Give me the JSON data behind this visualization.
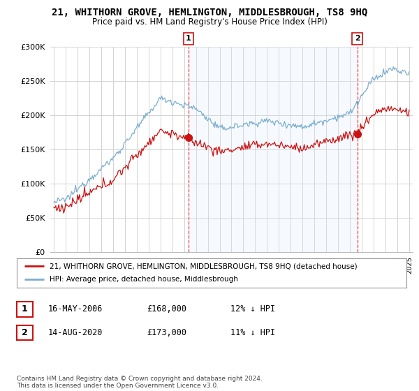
{
  "title": "21, WHITHORN GROVE, HEMLINGTON, MIDDLESBROUGH, TS8 9HQ",
  "subtitle": "Price paid vs. HM Land Registry's House Price Index (HPI)",
  "legend_line1": "21, WHITHORN GROVE, HEMLINGTON, MIDDLESBROUGH, TS8 9HQ (detached house)",
  "legend_line2": "HPI: Average price, detached house, Middlesbrough",
  "transaction1_label": "1",
  "transaction1_date": "16-MAY-2006",
  "transaction1_price": "£168,000",
  "transaction1_hpi": "12% ↓ HPI",
  "transaction2_label": "2",
  "transaction2_date": "14-AUG-2020",
  "transaction2_price": "£173,000",
  "transaction2_hpi": "11% ↓ HPI",
  "copyright": "Contains HM Land Registry data © Crown copyright and database right 2024.\nThis data is licensed under the Open Government Licence v3.0.",
  "hpi_color": "#7aadcf",
  "price_color": "#cc1111",
  "vline_color": "#ee4444",
  "shade_color": "#ddeeff",
  "background_color": "#ffffff",
  "grid_color": "#cccccc",
  "ylim_min": 0,
  "ylim_max": 300000,
  "start_year": 1995,
  "end_year": 2025,
  "transaction1_year": 2006.37,
  "transaction2_year": 2020.62,
  "t1_price": 168000,
  "t2_price": 173000
}
